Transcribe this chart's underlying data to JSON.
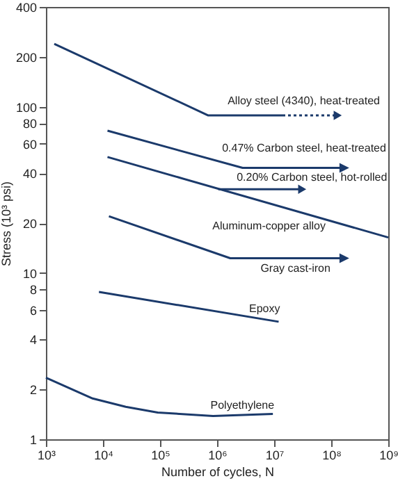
{
  "chart_data": {
    "type": "line",
    "xlabel": "Number of cycles, N",
    "ylabel": "Stress (10³ psi)",
    "log": "xy",
    "xlim": [
      1000,
      1000000000
    ],
    "ylim": [
      1,
      400
    ],
    "xticks": [
      {
        "value": 1000,
        "label": "10³"
      },
      {
        "value": 10000,
        "label": "10⁴"
      },
      {
        "value": 100000,
        "label": "10⁵"
      },
      {
        "value": 1000000,
        "label": "10⁶"
      },
      {
        "value": 10000000,
        "label": "10⁷"
      },
      {
        "value": 100000000,
        "label": "10⁸"
      },
      {
        "value": 1000000000,
        "label": "10⁹"
      }
    ],
    "yticks": [
      1,
      2,
      4,
      6,
      8,
      10,
      20,
      40,
      60,
      80,
      100,
      200,
      400
    ],
    "series": [
      {
        "name": "Alloy steel (4340), heat-treated",
        "color": "#1b3a6b",
        "x": [
          1400,
          700000,
          14000000
        ],
        "values": [
          240,
          89,
          89
        ]
      },
      {
        "color": "#1b3a6b",
        "x": [
          14000000,
          130000000
        ],
        "values": [
          89,
          89
        ],
        "line_style": "dotted",
        "marker": "triangle"
      },
      {
        "name": "0.47% Carbon steel, heat-treated",
        "color": "#1b3a6b",
        "x": [
          12000,
          2800000,
          170000000
        ],
        "values": [
          72,
          43,
          43
        ]
      },
      {
        "name": "0.20% Carbon steel, hot-rolled",
        "color": "#1b3a6b",
        "x": [
          1050000,
          31000000
        ],
        "values": [
          32,
          32
        ],
        "marker": "triangle"
      },
      {
        "name": "Aluminum-copper alloy",
        "color": "#1b3a6b",
        "x": [
          12000,
          1000000000
        ],
        "values": [
          50,
          16.4
        ]
      },
      {
        "name": "Gray cast-iron",
        "color": "#1b3a6b",
        "x": [
          12700,
          1700000,
          170000000
        ],
        "values": [
          22,
          12.3,
          12.3
        ]
      },
      {
        "name": "Epoxy",
        "color": "#1b3a6b",
        "x": [
          8500,
          12000000
        ],
        "values": [
          7.7,
          5.1
        ]
      },
      {
        "name": "Polyethylene",
        "color": "#1b3a6b",
        "x": [
          1000,
          6600,
          25000,
          91000,
          850000,
          9500000
        ],
        "values": [
          2.35,
          1.76,
          1.57,
          1.45,
          1.38,
          1.42
        ]
      }
    ]
  }
}
